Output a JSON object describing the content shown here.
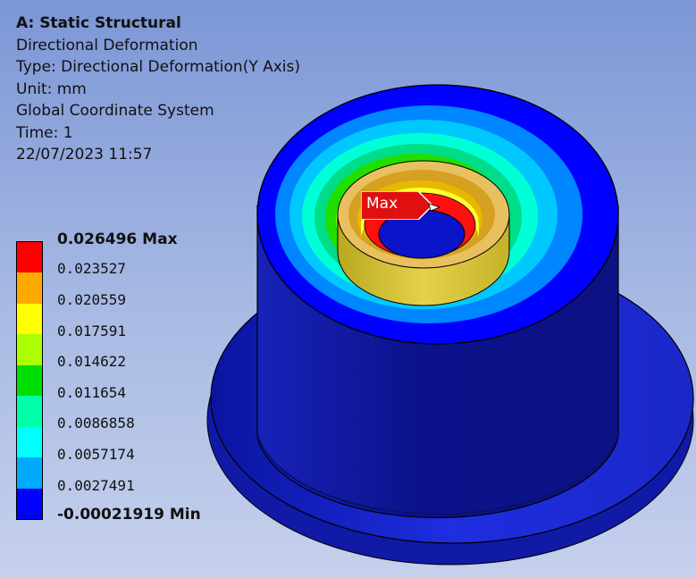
{
  "info": {
    "title": "A: Static Structural",
    "result_name": "Directional Deformation",
    "type": "Type: Directional Deformation(Y Axis)",
    "unit": "Unit: mm",
    "coordinate_system": "Global Coordinate System",
    "time": "Time: 1",
    "date": "22/07/2023 11:57"
  },
  "legend": {
    "max_label": "0.026496 Max",
    "min_label": "-0.00021919 Min",
    "values": [
      "0.023527",
      "0.020559",
      "0.017591",
      "0.014622",
      "0.011654",
      "0.0086858",
      "0.0057174",
      "0.0027491"
    ],
    "colors": [
      "#ff0000",
      "#ffaa00",
      "#ffff00",
      "#aaff00",
      "#00dd00",
      "#00ffaa",
      "#00ffff",
      "#00aaff",
      "#0000ff"
    ]
  },
  "probe": {
    "label": "Max"
  }
}
